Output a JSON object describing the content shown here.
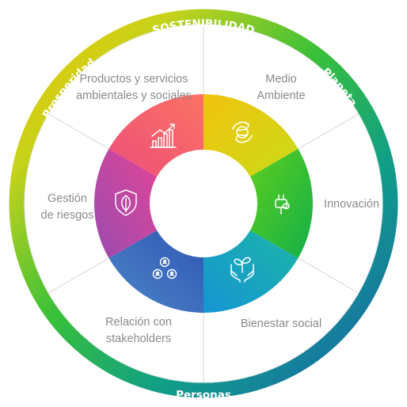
{
  "ring": {
    "top": "SOSTENIBILIDAD",
    "right": "Planeta",
    "bottom": "Personas",
    "left": "Prosperidad"
  },
  "segments": [
    {
      "label": "Medio\nAmbiente",
      "icon": "earth-recycle-icon",
      "color": "#e8d410"
    },
    {
      "label": "Innovación",
      "icon": "plug-leaf-icon",
      "color": "#2ebd3c"
    },
    {
      "label": "Bienestar social",
      "icon": "hands-plant-icon",
      "color": "#15a3c6"
    },
    {
      "label": "Relación con\nstakeholders",
      "icon": "people-network-icon",
      "color": "#3c67b6"
    },
    {
      "label": "Gestión\nde riesgos",
      "icon": "shield-leaf-icon",
      "color": "#c94fb5"
    },
    {
      "label": "Productos y servicios\nambientales y sociales",
      "icon": "growth-chart-icon",
      "color": "#f4636d"
    }
  ]
}
